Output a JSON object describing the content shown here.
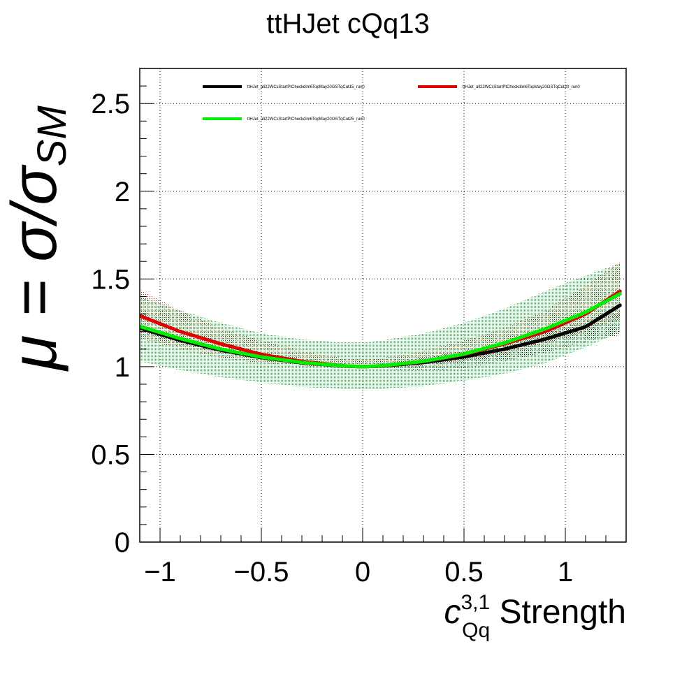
{
  "chart_data": {
    "type": "line",
    "title": "ttHJet cQq13",
    "xlabel": {
      "symbol": "c",
      "superscript": "3,1",
      "subscript": "Qq",
      "suffix": " Strength"
    },
    "ylabel": {
      "lhs": "μ = σ/σ",
      "subscript": "SM"
    },
    "xlim": [
      -1.1,
      1.3
    ],
    "ylim": [
      0,
      2.7
    ],
    "x_major_ticks": [
      -1,
      -0.5,
      0,
      0.5,
      1
    ],
    "x_tick_labels": [
      "−1",
      "−0.5",
      "0",
      "0.5",
      "1"
    ],
    "y_major_ticks": [
      0,
      0.5,
      1,
      1.5,
      2,
      2.5
    ],
    "y_tick_labels": [
      "0",
      "0.5",
      "1",
      "1.5",
      "2",
      "2.5"
    ],
    "grid": true,
    "legend_placement": "top",
    "series": [
      {
        "name": "ttHJet_all22WCsStartPtCheckdim6TopMay20GSTqCut15_run0",
        "color": "#000000",
        "band_color": "#000000",
        "x": [
          -1.1,
          -0.9,
          -0.7,
          -0.5,
          -0.3,
          -0.1,
          0.0,
          0.1,
          0.3,
          0.5,
          0.7,
          0.9,
          1.1,
          1.27
        ],
        "y": [
          1.22,
          1.15,
          1.094,
          1.052,
          1.022,
          1.004,
          1.0,
          1.004,
          1.024,
          1.056,
          1.1,
          1.157,
          1.227,
          1.35
        ],
        "band_low": [
          1.2,
          1.13,
          1.08,
          1.04,
          1.012,
          0.998,
          0.995,
          0.99,
          0.975,
          0.99,
          1.03,
          1.08,
          1.14,
          1.18
        ],
        "band_high": [
          1.24,
          1.17,
          1.11,
          1.064,
          1.032,
          1.01,
          1.005,
          1.015,
          1.05,
          1.09,
          1.14,
          1.2,
          1.26,
          1.31
        ]
      },
      {
        "name": "ttHJet_all22WCsStartPtCheckdim6TopMay20GSTqCut20_run0",
        "color": "#e00000",
        "band_color": "#c00000",
        "x": [
          -1.1,
          -0.9,
          -0.7,
          -0.5,
          -0.3,
          -0.1,
          0.0,
          0.1,
          0.3,
          0.5,
          0.7,
          0.9,
          1.1,
          1.27
        ],
        "y": [
          1.29,
          1.2,
          1.13,
          1.07,
          1.03,
          1.005,
          1.0,
          1.005,
          1.03,
          1.07,
          1.13,
          1.2,
          1.3,
          1.43
        ],
        "band_low": [
          1.16,
          1.1,
          1.05,
          1.02,
          1.005,
          0.998,
          0.997,
          0.998,
          1.005,
          1.03,
          1.07,
          1.13,
          1.2,
          1.27
        ],
        "band_high": [
          1.44,
          1.32,
          1.22,
          1.15,
          1.09,
          1.05,
          1.04,
          1.05,
          1.09,
          1.15,
          1.22,
          1.32,
          1.46,
          1.6
        ]
      },
      {
        "name": "ttHJet_all22WCsStartPtCheckdim6TopMay20GSTqCut25_run0",
        "color": "#00ee00",
        "band_color": "#33cc55",
        "x": [
          -1.1,
          -0.9,
          -0.7,
          -0.5,
          -0.3,
          -0.1,
          0.0,
          0.1,
          0.3,
          0.5,
          0.7,
          0.9,
          1.1,
          1.27
        ],
        "y": [
          1.23,
          1.16,
          1.1,
          1.055,
          1.024,
          1.005,
          1.0,
          1.006,
          1.03,
          1.072,
          1.135,
          1.215,
          1.31,
          1.415
        ],
        "band_low": [
          1.03,
          0.98,
          0.94,
          0.91,
          0.885,
          0.872,
          0.87,
          0.872,
          0.89,
          0.92,
          0.96,
          1.02,
          1.11,
          1.2
        ],
        "band_high": [
          1.4,
          1.32,
          1.25,
          1.19,
          1.155,
          1.14,
          1.14,
          1.15,
          1.19,
          1.25,
          1.33,
          1.43,
          1.52,
          1.59
        ]
      }
    ]
  }
}
